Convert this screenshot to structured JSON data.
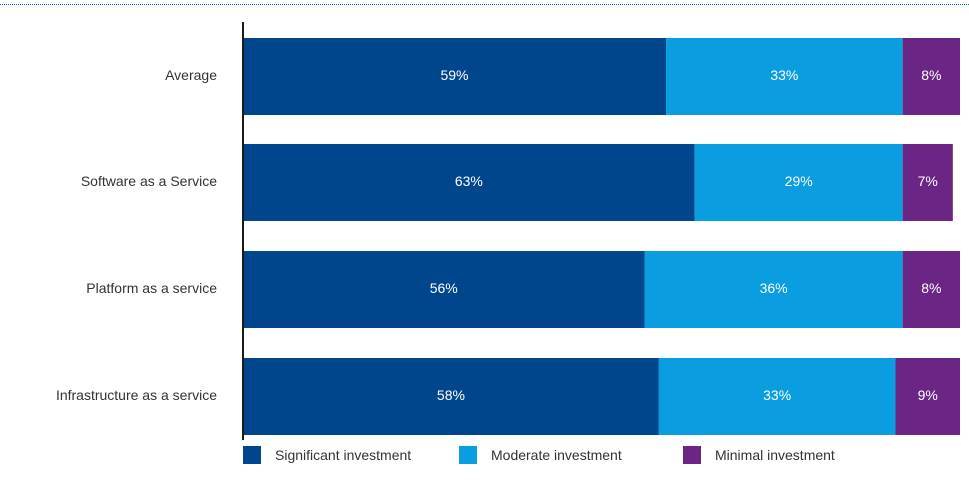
{
  "chart_data": {
    "type": "bar",
    "orientation": "horizontal",
    "stacked": true,
    "categories": [
      "Average",
      "Software as a Service",
      "Platform as a service",
      "Infrastructure as a service"
    ],
    "series": [
      {
        "name": "Significant investment",
        "values": [
          59,
          63,
          56,
          58
        ],
        "labels": [
          "59%",
          "63%",
          "56%",
          "58%"
        ],
        "color": "#00468c"
      },
      {
        "name": "Moderate investment",
        "values": [
          33,
          29,
          36,
          33
        ],
        "labels": [
          "33%",
          "29%",
          "36%",
          "33%"
        ],
        "color": "#0a9ee0"
      },
      {
        "name": "Minimal investment",
        "values": [
          8,
          7,
          8,
          9
        ],
        "labels": [
          "8%",
          "7%",
          "8%",
          "9%"
        ],
        "color": "#6b2585"
      }
    ],
    "title": "",
    "xlabel": "",
    "ylabel": "",
    "xlim": [
      0,
      100
    ],
    "grid": false,
    "legend_position": "bottom"
  }
}
